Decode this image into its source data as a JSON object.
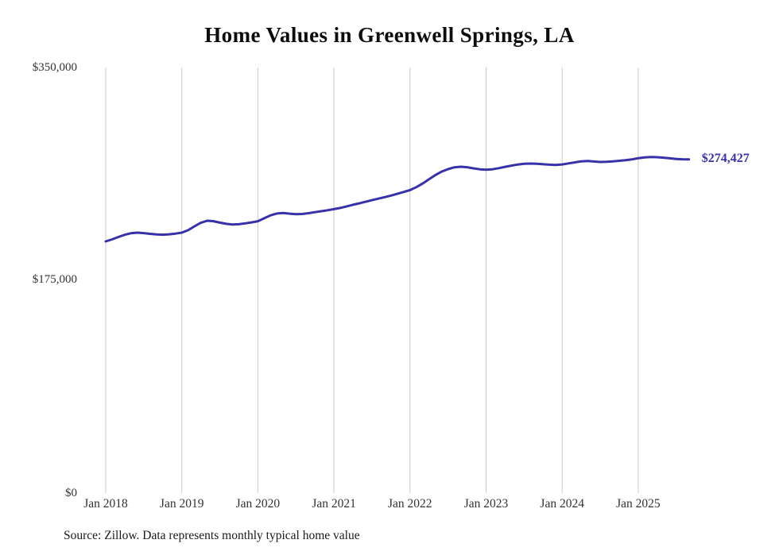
{
  "chart_data": {
    "type": "line",
    "title": "Home Values in Greenwell Springs, LA",
    "source": "Source: Zillow. Data represents monthly typical home value",
    "end_label": "$274,427",
    "latest_value": 274427,
    "ylabel": "",
    "xlabel": "",
    "ylim": [
      0,
      350000
    ],
    "y_ticks": [
      "$350,000",
      "$175,000",
      "$0"
    ],
    "x_ticks": [
      "Jan 2018",
      "Jan 2019",
      "Jan 2020",
      "Jan 2021",
      "Jan 2022",
      "Jan 2023",
      "Jan 2024",
      "Jan 2025"
    ],
    "frequency": "monthly",
    "start_month": "2018-01",
    "end_month": "2025-09",
    "grid": "vertical",
    "legend": "none",
    "line_color": "#3732a8",
    "grid_color": "#cccccc",
    "series": [
      {
        "name": "Typical home value",
        "values": [
          207000,
          208600,
          210600,
          212400,
          213700,
          214200,
          213800,
          213200,
          212700,
          212500,
          212800,
          213400,
          214200,
          216200,
          219400,
          222300,
          224000,
          223600,
          222400,
          221400,
          220900,
          221100,
          221800,
          222600,
          223600,
          226000,
          228400,
          229900,
          230300,
          229800,
          229300,
          229500,
          230200,
          231000,
          231800,
          232600,
          233500,
          234500,
          235800,
          237100,
          238300,
          239600,
          240900,
          242100,
          243400,
          244700,
          246100,
          247600,
          249200,
          251600,
          254600,
          258100,
          261500,
          264400,
          266400,
          267900,
          268400,
          268000,
          267100,
          266300,
          265900,
          266300,
          267200,
          268300,
          269300,
          270200,
          270800,
          271000,
          270800,
          270400,
          270100,
          269900,
          270300,
          271100,
          272000,
          272800,
          273100,
          272700,
          272300,
          272400,
          272800,
          273300,
          273800,
          274400,
          275400,
          276100,
          276400,
          276200,
          275800,
          275300,
          274800,
          274500,
          274427
        ]
      }
    ]
  }
}
